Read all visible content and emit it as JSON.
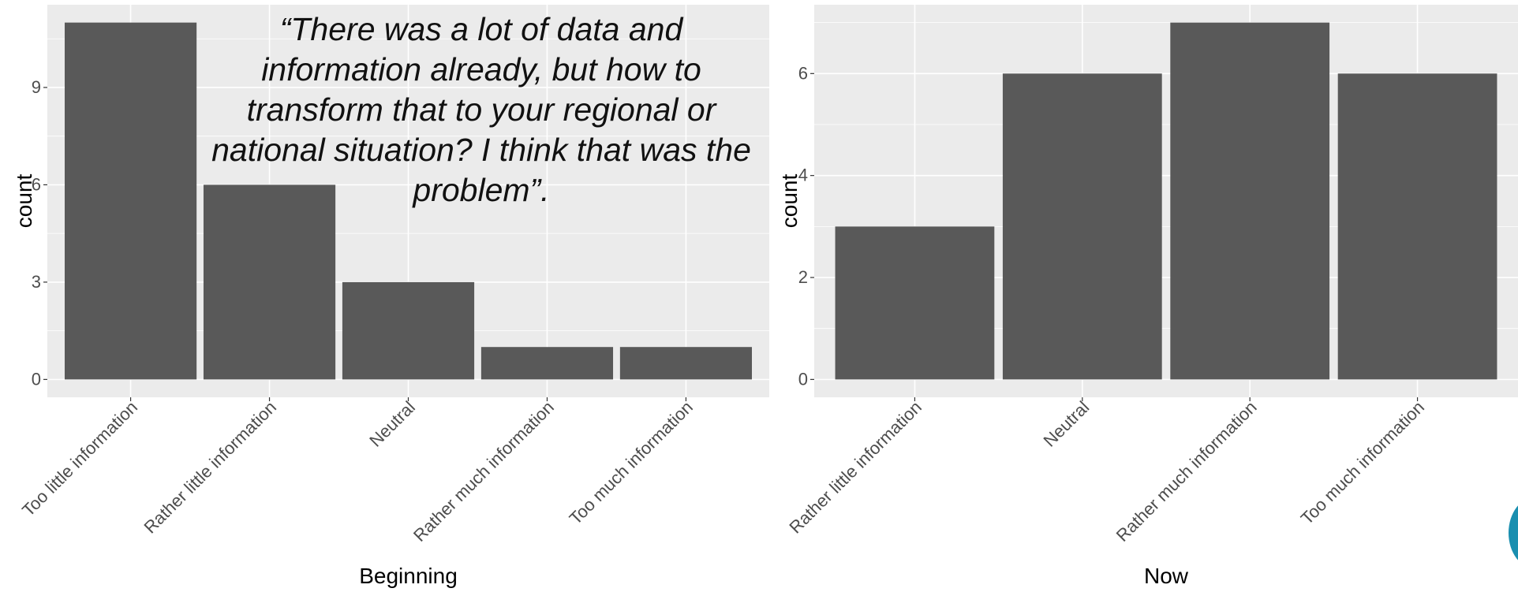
{
  "quote": "“There was a lot of data and information already, but how to transform that to your regional or national situation? I think that was the problem”.",
  "colors": {
    "panel": "#ebebeb",
    "bar": "#595959",
    "grid": "#ffffff",
    "text": "#4d4d4d",
    "accent": "#1a8fb0"
  },
  "chart_data": [
    {
      "type": "bar",
      "categories": [
        "Too little information",
        "Rather little information",
        "Neutral",
        "Rather much information",
        "Too much information"
      ],
      "values": [
        11,
        6,
        3,
        1,
        1
      ],
      "xlabel": "Beginning",
      "ylabel": "count",
      "yticks": [
        0,
        3,
        6,
        9
      ],
      "ylim": [
        -0.55,
        11.55
      ],
      "grid": true
    },
    {
      "type": "bar",
      "categories": [
        "Rather little information",
        "Neutral",
        "Rather much information",
        "Too much information"
      ],
      "values": [
        3,
        6,
        7,
        6
      ],
      "xlabel": "Now",
      "ylabel": "count",
      "yticks": [
        0,
        2,
        4,
        6
      ],
      "ylim": [
        -0.35,
        7.35
      ],
      "grid": true
    }
  ]
}
